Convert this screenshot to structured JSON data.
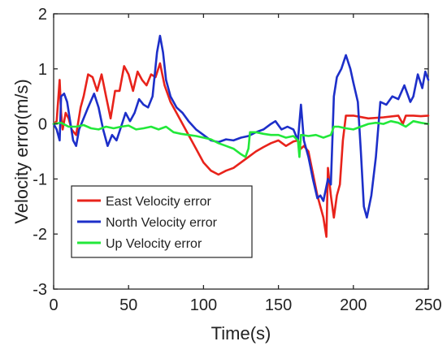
{
  "chart_data": {
    "type": "line",
    "title": "",
    "xlabel": "Time(s)",
    "ylabel": "Velocity error(m/s)",
    "xlim": [
      0,
      250
    ],
    "ylim": [
      -3,
      2
    ],
    "xticks": [
      0,
      50,
      100,
      150,
      200,
      250
    ],
    "xtick_labels": [
      "0",
      "50",
      "100",
      "150",
      "200",
      "250"
    ],
    "yticks": [
      -3,
      -2,
      -1,
      0,
      1,
      2
    ],
    "ytick_labels": [
      "-3",
      "-2",
      "-1",
      "0",
      "1",
      "2"
    ],
    "grid": false,
    "legend_position": "bottom-left",
    "series": [
      {
        "name": "East Velocity error",
        "color": "#e8231b",
        "points": [
          [
            0,
            0
          ],
          [
            2,
            0.05
          ],
          [
            4,
            0.8
          ],
          [
            5,
            0.2
          ],
          [
            6,
            -0.1
          ],
          [
            8,
            0.2
          ],
          [
            10,
            0.1
          ],
          [
            12,
            -0.1
          ],
          [
            15,
            -0.2
          ],
          [
            18,
            0.3
          ],
          [
            20,
            0.5
          ],
          [
            23,
            0.9
          ],
          [
            26,
            0.85
          ],
          [
            29,
            0.6
          ],
          [
            32,
            0.9
          ],
          [
            35,
            0.5
          ],
          [
            38,
            0.1
          ],
          [
            41,
            0.6
          ],
          [
            44,
            0.6
          ],
          [
            47,
            1.05
          ],
          [
            50,
            0.9
          ],
          [
            53,
            0.6
          ],
          [
            56,
            0.95
          ],
          [
            59,
            0.8
          ],
          [
            62,
            0.7
          ],
          [
            65,
            0.9
          ],
          [
            68,
            0.85
          ],
          [
            71,
            1.1
          ],
          [
            74,
            0.7
          ],
          [
            78,
            0.4
          ],
          [
            82,
            0.2
          ],
          [
            86,
            0.0
          ],
          [
            90,
            -0.2
          ],
          [
            95,
            -0.45
          ],
          [
            100,
            -0.7
          ],
          [
            105,
            -0.85
          ],
          [
            110,
            -0.92
          ],
          [
            115,
            -0.85
          ],
          [
            120,
            -0.8
          ],
          [
            125,
            -0.7
          ],
          [
            130,
            -0.6
          ],
          [
            135,
            -0.5
          ],
          [
            140,
            -0.42
          ],
          [
            145,
            -0.35
          ],
          [
            150,
            -0.3
          ],
          [
            155,
            -0.4
          ],
          [
            160,
            -0.32
          ],
          [
            163,
            -0.3
          ],
          [
            165,
            -0.45
          ],
          [
            167,
            -0.4
          ],
          [
            170,
            -0.5
          ],
          [
            173,
            -0.9
          ],
          [
            176,
            -1.3
          ],
          [
            178,
            -1.5
          ],
          [
            180,
            -1.7
          ],
          [
            182,
            -2.05
          ],
          [
            183,
            -0.8
          ],
          [
            185,
            -1.3
          ],
          [
            187,
            -1.7
          ],
          [
            189,
            -1.3
          ],
          [
            191,
            -1.1
          ],
          [
            193,
            -0.3
          ],
          [
            195,
            0.15
          ],
          [
            200,
            0.15
          ],
          [
            210,
            0.1
          ],
          [
            220,
            0.12
          ],
          [
            230,
            0.15
          ],
          [
            233,
            0.0
          ],
          [
            235,
            0.15
          ],
          [
            240,
            0.15
          ],
          [
            245,
            0.14
          ],
          [
            250,
            0.15
          ]
        ]
      },
      {
        "name": "North Velocity error",
        "color": "#1d2fc9",
        "points": [
          [
            0,
            0
          ],
          [
            2,
            -0.1
          ],
          [
            4,
            -0.3
          ],
          [
            5,
            0.5
          ],
          [
            7,
            0.55
          ],
          [
            9,
            0.4
          ],
          [
            11,
            0.05
          ],
          [
            13,
            -0.3
          ],
          [
            15,
            -0.4
          ],
          [
            17,
            -0.1
          ],
          [
            20,
            0.1
          ],
          [
            23,
            0.3
          ],
          [
            27,
            0.55
          ],
          [
            30,
            0.3
          ],
          [
            33,
            -0.1
          ],
          [
            36,
            -0.4
          ],
          [
            39,
            -0.2
          ],
          [
            42,
            -0.3
          ],
          [
            45,
            -0.05
          ],
          [
            48,
            0.2
          ],
          [
            51,
            0.05
          ],
          [
            54,
            0.2
          ],
          [
            57,
            0.45
          ],
          [
            60,
            0.35
          ],
          [
            63,
            0.3
          ],
          [
            66,
            0.5
          ],
          [
            69,
            1.3
          ],
          [
            71,
            1.6
          ],
          [
            73,
            1.3
          ],
          [
            75,
            0.8
          ],
          [
            78,
            0.5
          ],
          [
            82,
            0.3
          ],
          [
            86,
            0.2
          ],
          [
            90,
            0.05
          ],
          [
            95,
            -0.1
          ],
          [
            100,
            -0.2
          ],
          [
            105,
            -0.3
          ],
          [
            110,
            -0.33
          ],
          [
            115,
            -0.28
          ],
          [
            120,
            -0.3
          ],
          [
            125,
            -0.25
          ],
          [
            130,
            -0.22
          ],
          [
            135,
            -0.15
          ],
          [
            140,
            -0.1
          ],
          [
            145,
            0.0
          ],
          [
            148,
            0.05
          ],
          [
            152,
            -0.1
          ],
          [
            156,
            -0.05
          ],
          [
            160,
            -0.1
          ],
          [
            163,
            -0.3
          ],
          [
            165,
            0.35
          ],
          [
            167,
            -0.3
          ],
          [
            170,
            -0.6
          ],
          [
            173,
            -1.0
          ],
          [
            176,
            -1.35
          ],
          [
            178,
            -1.3
          ],
          [
            180,
            -1.4
          ],
          [
            183,
            -1.0
          ],
          [
            185,
            -1.1
          ],
          [
            187,
            0.5
          ],
          [
            189,
            0.85
          ],
          [
            192,
            1.0
          ],
          [
            195,
            1.25
          ],
          [
            198,
            1.0
          ],
          [
            200,
            0.75
          ],
          [
            203,
            0.4
          ],
          [
            205,
            -0.5
          ],
          [
            207,
            -1.5
          ],
          [
            209,
            -1.7
          ],
          [
            212,
            -1.3
          ],
          [
            215,
            -0.6
          ],
          [
            218,
            0.4
          ],
          [
            222,
            0.35
          ],
          [
            226,
            0.5
          ],
          [
            230,
            0.45
          ],
          [
            234,
            0.7
          ],
          [
            238,
            0.4
          ],
          [
            240,
            0.5
          ],
          [
            243,
            0.9
          ],
          [
            246,
            0.65
          ],
          [
            248,
            0.95
          ],
          [
            250,
            0.8
          ]
        ]
      },
      {
        "name": "Up Velocity error",
        "color": "#22e83a",
        "points": [
          [
            0,
            0
          ],
          [
            5,
            0.02
          ],
          [
            10,
            -0.05
          ],
          [
            15,
            -0.05
          ],
          [
            20,
            -0.02
          ],
          [
            25,
            -0.08
          ],
          [
            30,
            -0.1
          ],
          [
            35,
            -0.05
          ],
          [
            40,
            -0.08
          ],
          [
            45,
            -0.05
          ],
          [
            50,
            -0.03
          ],
          [
            55,
            -0.1
          ],
          [
            60,
            -0.08
          ],
          [
            65,
            -0.05
          ],
          [
            70,
            -0.1
          ],
          [
            75,
            -0.05
          ],
          [
            80,
            -0.15
          ],
          [
            85,
            -0.18
          ],
          [
            90,
            -0.2
          ],
          [
            95,
            -0.22
          ],
          [
            100,
            -0.25
          ],
          [
            105,
            -0.28
          ],
          [
            110,
            -0.35
          ],
          [
            115,
            -0.4
          ],
          [
            120,
            -0.45
          ],
          [
            125,
            -0.55
          ],
          [
            128,
            -0.6
          ],
          [
            130,
            -0.45
          ],
          [
            131,
            -0.15
          ],
          [
            135,
            -0.15
          ],
          [
            140,
            -0.18
          ],
          [
            145,
            -0.2
          ],
          [
            150,
            -0.2
          ],
          [
            155,
            -0.25
          ],
          [
            160,
            -0.22
          ],
          [
            163,
            -0.3
          ],
          [
            164,
            -0.6
          ],
          [
            165,
            -0.2
          ],
          [
            170,
            -0.22
          ],
          [
            175,
            -0.2
          ],
          [
            180,
            -0.25
          ],
          [
            185,
            -0.2
          ],
          [
            187,
            -0.05
          ],
          [
            190,
            -0.05
          ],
          [
            195,
            -0.08
          ],
          [
            200,
            -0.1
          ],
          [
            205,
            -0.05
          ],
          [
            210,
            0.0
          ],
          [
            215,
            0.02
          ],
          [
            220,
            0.0
          ],
          [
            225,
            0.05
          ],
          [
            230,
            0.02
          ],
          [
            235,
            -0.05
          ],
          [
            240,
            0.05
          ],
          [
            245,
            0.02
          ],
          [
            250,
            0.0
          ]
        ]
      }
    ]
  }
}
